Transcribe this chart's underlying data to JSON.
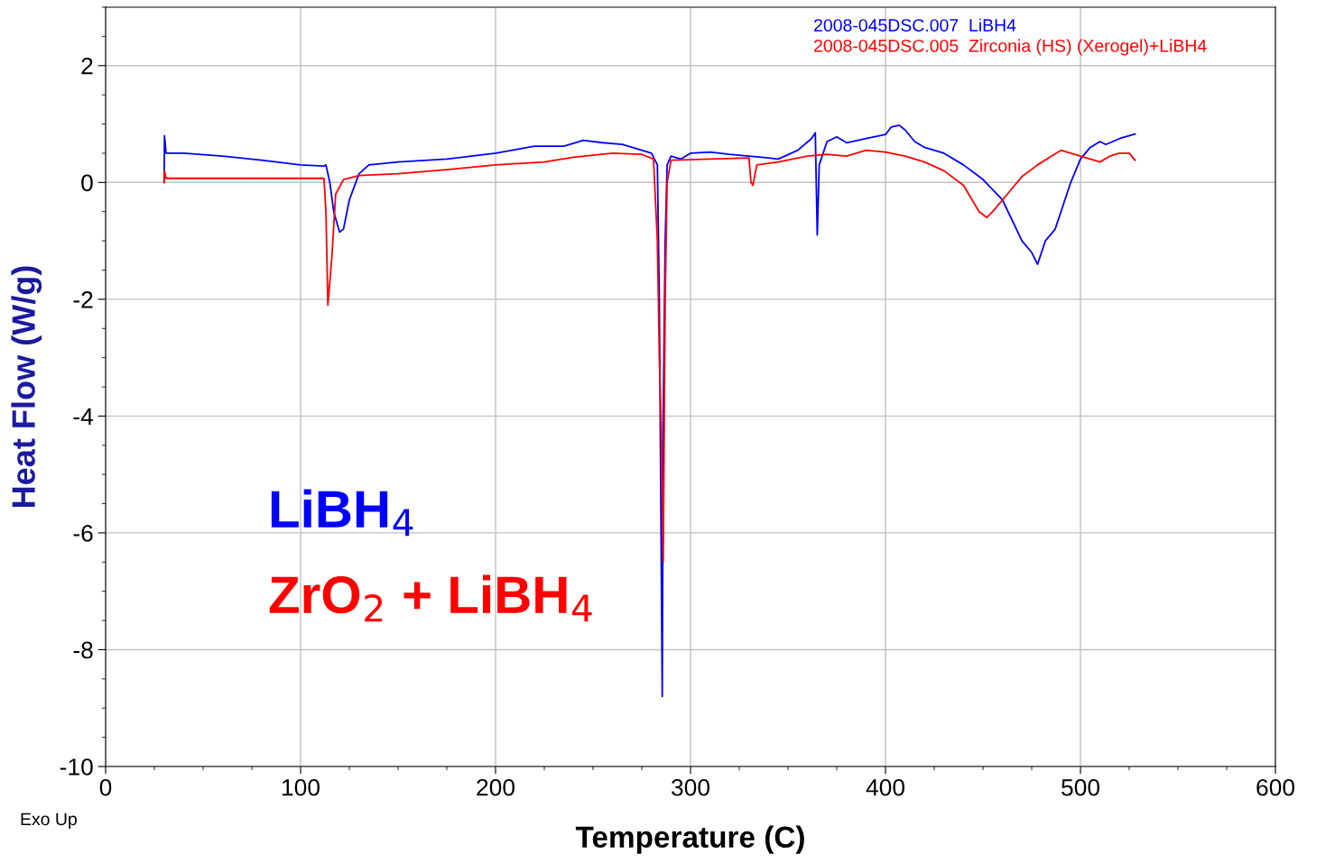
{
  "chart_data": {
    "type": "line",
    "xlabel": "Temperature (C)",
    "ylabel": "Heat Flow (W/g)",
    "xlim": [
      0,
      600
    ],
    "ylim": [
      -10,
      3
    ],
    "xticks": [
      0,
      100,
      200,
      300,
      400,
      500,
      600
    ],
    "yticks": [
      2,
      0,
      -2,
      -4,
      -6,
      -8,
      -10
    ],
    "grid": true,
    "legend": "top right",
    "marker": "none",
    "line_style": "solid",
    "annotations": [
      "Exo Up",
      "LiBH$_{4}$",
      "ZrO$_{2}$ + LiBH$_{4}$"
    ],
    "series": [
      {
        "name": "2008-045DSC.007  LiBH4",
        "color": "#0000ff",
        "x": [
          30,
          30.2,
          31,
          40,
          60,
          80,
          100,
          112,
          113,
          115,
          117,
          120,
          122,
          125,
          130,
          135,
          150,
          175,
          200,
          220,
          235,
          245,
          255,
          265,
          275,
          280,
          283,
          284,
          285.5,
          286,
          287,
          288,
          290,
          295,
          300,
          310,
          320,
          330,
          340,
          345,
          355,
          362,
          364,
          365,
          366,
          370,
          375,
          380,
          390,
          400,
          403,
          407,
          410,
          415,
          420,
          430,
          440,
          450,
          460,
          470,
          475,
          478,
          482,
          487,
          490,
          495,
          500,
          505,
          510,
          513,
          520,
          528
        ],
        "values": [
          0.0,
          0.8,
          0.5,
          0.5,
          0.45,
          0.38,
          0.3,
          0.28,
          0.3,
          0.0,
          -0.5,
          -0.85,
          -0.8,
          -0.3,
          0.15,
          0.3,
          0.35,
          0.4,
          0.5,
          0.62,
          0.62,
          0.72,
          0.68,
          0.65,
          0.55,
          0.5,
          0.3,
          -2,
          -8.8,
          -4,
          -1,
          0.3,
          0.45,
          0.4,
          0.5,
          0.52,
          0.48,
          0.45,
          0.42,
          0.4,
          0.55,
          0.75,
          0.85,
          -0.9,
          0.3,
          0.7,
          0.78,
          0.68,
          0.75,
          0.82,
          0.95,
          0.98,
          0.9,
          0.7,
          0.6,
          0.5,
          0.3,
          0.05,
          -0.3,
          -1.0,
          -1.2,
          -1.4,
          -1.0,
          -0.8,
          -0.5,
          0.0,
          0.4,
          0.6,
          0.7,
          0.65,
          0.75,
          0.83
        ]
      },
      {
        "name": "2008-045DSC.005  Zirconia (HS) (Xerogel)+LiBH4",
        "color": "#ff0000",
        "x": [
          30,
          30.2,
          31,
          50,
          80,
          100,
          112,
          113,
          114,
          116,
          118,
          122,
          130,
          150,
          175,
          200,
          225,
          240,
          260,
          275,
          281,
          283,
          284,
          285,
          286,
          287,
          288,
          290,
          310,
          330,
          331,
          332,
          334,
          345,
          360,
          370,
          380,
          390,
          400,
          410,
          420,
          430,
          440,
          448,
          452,
          455,
          460,
          465,
          470,
          478,
          485,
          490,
          495,
          500,
          505,
          510,
          515,
          520,
          525,
          528
        ],
        "values": [
          0.0,
          0.2,
          0.07,
          0.07,
          0.07,
          0.07,
          0.07,
          -0.5,
          -2.1,
          -1.3,
          -0.2,
          0.05,
          0.12,
          0.15,
          0.22,
          0.3,
          0.35,
          0.43,
          0.5,
          0.48,
          0.4,
          -1,
          -3,
          -4.2,
          -6.5,
          -2,
          0.0,
          0.38,
          0.4,
          0.42,
          0.0,
          -0.05,
          0.3,
          0.35,
          0.45,
          0.48,
          0.45,
          0.55,
          0.52,
          0.45,
          0.35,
          0.2,
          -0.05,
          -0.5,
          -0.6,
          -0.5,
          -0.3,
          -0.1,
          0.1,
          0.3,
          0.45,
          0.55,
          0.5,
          0.45,
          0.4,
          0.35,
          0.45,
          0.5,
          0.5,
          0.38
        ]
      }
    ]
  }
}
